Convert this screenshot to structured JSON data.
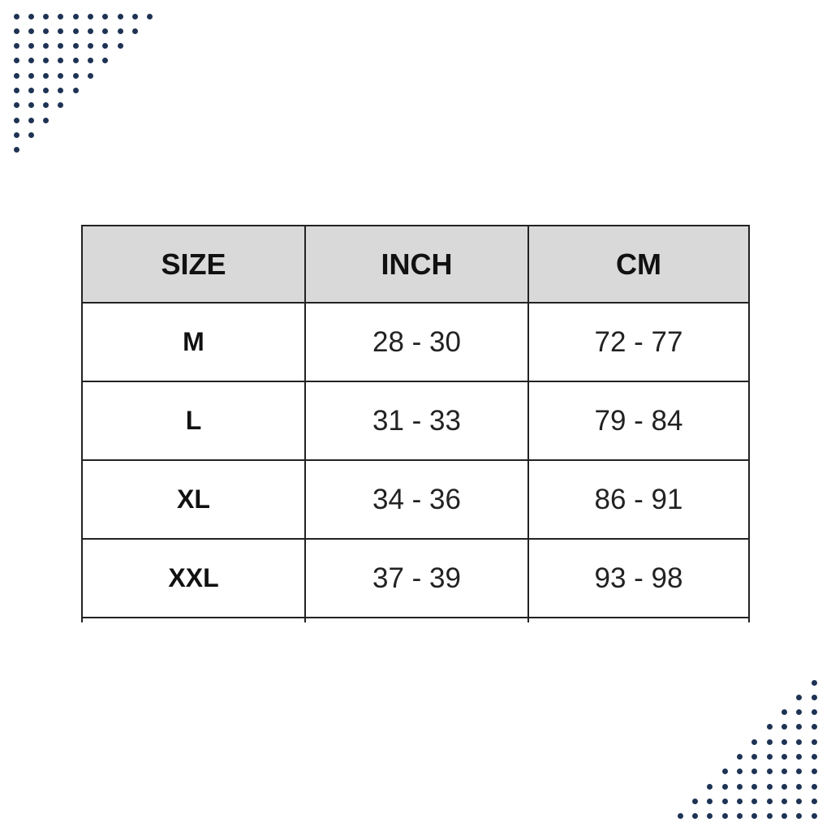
{
  "decoration": {
    "dot_color": "#1e3354",
    "icon": "dot-pattern-icon"
  },
  "table": {
    "header_bg": "#d9d9d9",
    "headers": [
      "SIZE",
      "INCH",
      "CM"
    ],
    "rows": [
      [
        "M",
        "28 - 30",
        "72 - 77"
      ],
      [
        "L",
        "31 - 33",
        "79 - 84"
      ],
      [
        "XL",
        "34 - 36",
        "86 - 91"
      ],
      [
        "XXL",
        "37 - 39",
        "93 - 98"
      ]
    ]
  }
}
